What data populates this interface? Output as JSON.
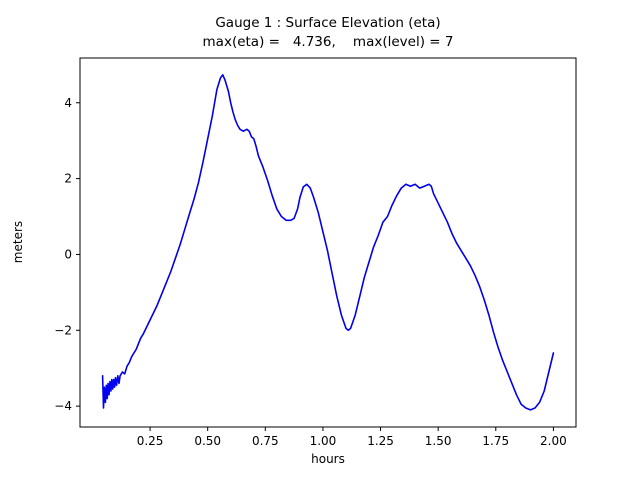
{
  "figure": {
    "background": "#ffffff"
  },
  "chart_data": {
    "type": "line",
    "title": "Gauge 1 : Surface Elevation (eta)",
    "subtitle": "max(eta) =   4.736,    max(level) = 7",
    "xlabel": "hours",
    "ylabel": "meters",
    "xlim": [
      -0.054,
      2.098
    ],
    "ylim": [
      -4.55,
      5.18
    ],
    "xticks": [
      0.25,
      0.5,
      0.75,
      1.0,
      1.25,
      1.5,
      1.75,
      2.0
    ],
    "xtick_labels": [
      "0.25",
      "0.50",
      "0.75",
      "1.00",
      "1.25",
      "1.50",
      "1.75",
      "2.00"
    ],
    "yticks": [
      -4,
      -2,
      0,
      2,
      4
    ],
    "ytick_labels": [
      "−4",
      "−2",
      "0",
      "2",
      "4"
    ],
    "grid": false,
    "legend": "none",
    "line_color": "#0000ee",
    "axis_color": "#000000",
    "series": [
      {
        "name": "eta",
        "x": [
          0.044,
          0.048,
          0.052,
          0.056,
          0.06,
          0.064,
          0.068,
          0.072,
          0.076,
          0.08,
          0.084,
          0.088,
          0.092,
          0.096,
          0.1,
          0.105,
          0.11,
          0.115,
          0.12,
          0.13,
          0.14,
          0.15,
          0.16,
          0.17,
          0.18,
          0.19,
          0.2,
          0.21,
          0.22,
          0.24,
          0.26,
          0.28,
          0.3,
          0.32,
          0.34,
          0.36,
          0.38,
          0.4,
          0.42,
          0.44,
          0.46,
          0.48,
          0.5,
          0.52,
          0.54,
          0.555,
          0.565,
          0.575,
          0.59,
          0.6,
          0.61,
          0.62,
          0.63,
          0.64,
          0.655,
          0.67,
          0.68,
          0.69,
          0.7,
          0.71,
          0.72,
          0.74,
          0.76,
          0.78,
          0.8,
          0.82,
          0.84,
          0.86,
          0.875,
          0.89,
          0.9,
          0.915,
          0.93,
          0.945,
          0.96,
          0.98,
          1.0,
          1.02,
          1.04,
          1.06,
          1.08,
          1.1,
          1.11,
          1.12,
          1.14,
          1.16,
          1.18,
          1.2,
          1.22,
          1.24,
          1.26,
          1.28,
          1.3,
          1.32,
          1.34,
          1.36,
          1.38,
          1.4,
          1.42,
          1.44,
          1.46,
          1.47,
          1.48,
          1.5,
          1.52,
          1.54,
          1.56,
          1.58,
          1.6,
          1.62,
          1.64,
          1.66,
          1.68,
          1.7,
          1.72,
          1.74,
          1.76,
          1.78,
          1.8,
          1.82,
          1.84,
          1.86,
          1.88,
          1.9,
          1.92,
          1.94,
          1.96,
          1.98,
          2.0
        ],
        "y": [
          -3.2,
          -4.05,
          -3.5,
          -3.9,
          -3.45,
          -3.8,
          -3.4,
          -3.7,
          -3.35,
          -3.6,
          -3.3,
          -3.55,
          -3.3,
          -3.5,
          -3.25,
          -3.45,
          -3.2,
          -3.4,
          -3.2,
          -3.1,
          -3.15,
          -2.95,
          -2.85,
          -2.7,
          -2.6,
          -2.5,
          -2.35,
          -2.2,
          -2.1,
          -1.85,
          -1.6,
          -1.35,
          -1.05,
          -0.75,
          -0.45,
          -0.1,
          0.25,
          0.65,
          1.05,
          1.45,
          1.9,
          2.45,
          3.05,
          3.65,
          4.35,
          4.65,
          4.736,
          4.6,
          4.3,
          4.0,
          3.75,
          3.55,
          3.4,
          3.3,
          3.25,
          3.3,
          3.25,
          3.1,
          3.05,
          2.85,
          2.6,
          2.3,
          1.95,
          1.55,
          1.2,
          1.0,
          0.9,
          0.9,
          0.95,
          1.2,
          1.5,
          1.78,
          1.85,
          1.75,
          1.5,
          1.1,
          0.6,
          0.1,
          -0.5,
          -1.1,
          -1.6,
          -1.95,
          -2.0,
          -1.95,
          -1.6,
          -1.1,
          -0.6,
          -0.2,
          0.2,
          0.5,
          0.85,
          1.0,
          1.3,
          1.55,
          1.75,
          1.85,
          1.8,
          1.85,
          1.75,
          1.8,
          1.85,
          1.8,
          1.6,
          1.35,
          1.1,
          0.85,
          0.55,
          0.3,
          0.1,
          -0.1,
          -0.3,
          -0.55,
          -0.85,
          -1.2,
          -1.6,
          -2.05,
          -2.45,
          -2.8,
          -3.1,
          -3.4,
          -3.7,
          -3.95,
          -4.05,
          -4.1,
          -4.05,
          -3.9,
          -3.6,
          -3.1,
          -2.6
        ]
      }
    ]
  }
}
